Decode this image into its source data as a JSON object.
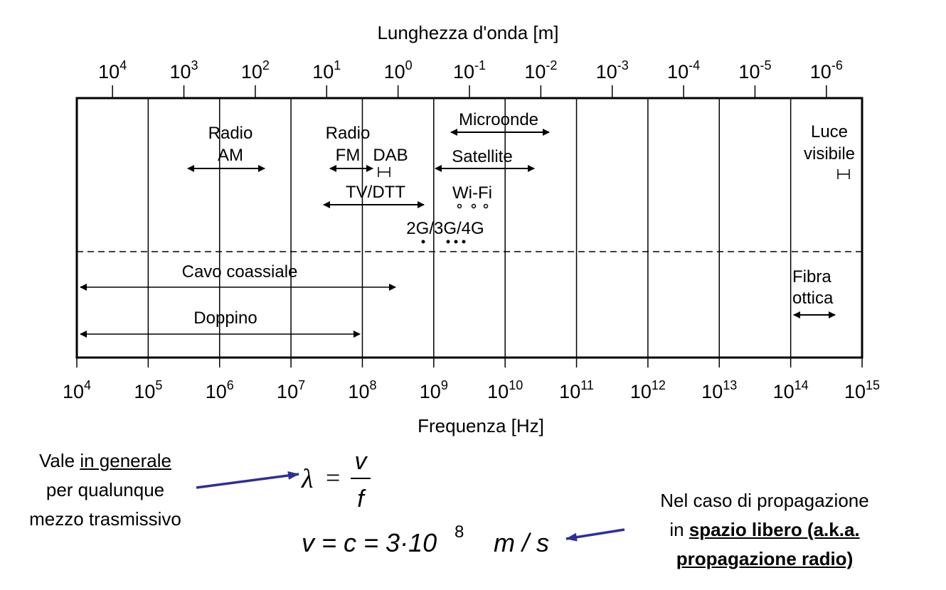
{
  "axes": {
    "top_title": "Lunghezza d'onda [m]",
    "bottom_title": "Frequenza [Hz]",
    "top_ticks": [
      {
        "base": "10",
        "exp": "4"
      },
      {
        "base": "10",
        "exp": "3"
      },
      {
        "base": "10",
        "exp": "2"
      },
      {
        "base": "10",
        "exp": "1"
      },
      {
        "base": "10",
        "exp": "0"
      },
      {
        "base": "10",
        "exp": "-1"
      },
      {
        "base": "10",
        "exp": "-2"
      },
      {
        "base": "10",
        "exp": "-3"
      },
      {
        "base": "10",
        "exp": "-4"
      },
      {
        "base": "10",
        "exp": "-5"
      },
      {
        "base": "10",
        "exp": "-6"
      }
    ],
    "bottom_ticks": [
      {
        "base": "10",
        "exp": "4"
      },
      {
        "base": "10",
        "exp": "5"
      },
      {
        "base": "10",
        "exp": "6"
      },
      {
        "base": "10",
        "exp": "7"
      },
      {
        "base": "10",
        "exp": "8"
      },
      {
        "base": "10",
        "exp": "9"
      },
      {
        "base": "10",
        "exp": "10"
      },
      {
        "base": "10",
        "exp": "11"
      },
      {
        "base": "10",
        "exp": "12"
      },
      {
        "base": "10",
        "exp": "13"
      },
      {
        "base": "10",
        "exp": "14"
      },
      {
        "base": "10",
        "exp": "15"
      }
    ]
  },
  "bands": {
    "radio_am": "Radio\nAM",
    "radio_fm": "Radio\nFM",
    "dab": "DAB",
    "tv_dtt": "TV/DTT",
    "microonde": "Microonde",
    "satellite": "Satellite",
    "wifi": "Wi-Fi",
    "cellular": "2G/3G/4G",
    "luce_visibile": "Luce\nvisibile",
    "cavo_coassiale": "Cavo coassiale",
    "doppino": "Doppino",
    "fibra_ottica": "Fibra\nottica"
  },
  "formulas": {
    "lambda": "λ",
    "equals": "=",
    "v": "v",
    "f": "f",
    "speed_lhs": "v = c = 3·10",
    "speed_exp": "8",
    "speed_unit": "m / s"
  },
  "notes": {
    "left_line1": "Vale ",
    "left_underline": "in generale",
    "left_line2": "per qualunque",
    "left_line3": "mezzo trasmissivo",
    "right_line1": "Nel caso di propagazione",
    "right_line2_prefix": "in ",
    "right_line2_bold": "spazio libero (a.k.a.",
    "right_line3_bold": "propagazione radio)"
  },
  "colors": {
    "arrow_note": "#2e2e9a",
    "ink": "#000000"
  }
}
